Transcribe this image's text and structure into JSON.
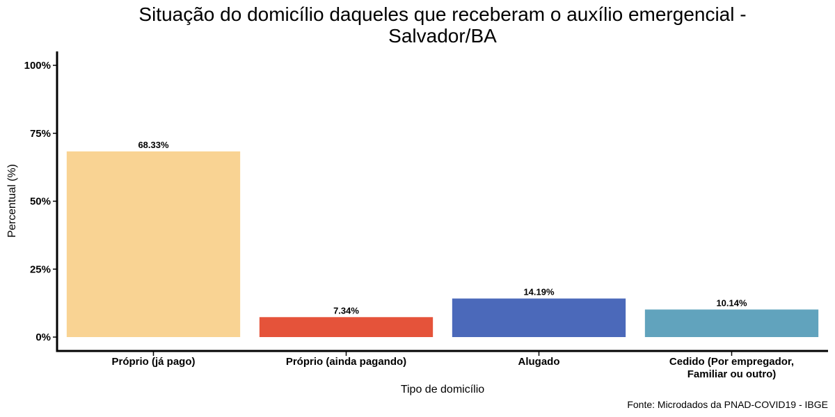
{
  "chart_data": {
    "type": "bar",
    "title_lines": [
      "Situação do domicílio daqueles que receberam o auxílio emergencial -",
      "Salvador/BA"
    ],
    "xlabel": "Tipo de domicílio",
    "ylabel": "Percentual (%)",
    "ylim": [
      0,
      100
    ],
    "yticks": [
      0,
      25,
      50,
      75,
      100
    ],
    "ytick_labels": [
      "0%",
      "25%",
      "50%",
      "75%",
      "100%"
    ],
    "categories": [
      [
        "Próprio (já pago)"
      ],
      [
        "Próprio (ainda pagando)"
      ],
      [
        "Alugado"
      ],
      [
        "Cedido (Por empregador,",
        "Familiar ou outro)"
      ]
    ],
    "values": [
      68.33,
      7.34,
      14.19,
      10.14
    ],
    "value_labels": [
      "68.33%",
      "7.34%",
      "14.19%",
      "10.14%"
    ],
    "colors": [
      "#F9D393",
      "#E5533A",
      "#4B69BA",
      "#61A3BD"
    ],
    "grid": false,
    "legend": "none",
    "caption": "Fonte: Microdados da PNAD-COVID19 - IBGE"
  }
}
